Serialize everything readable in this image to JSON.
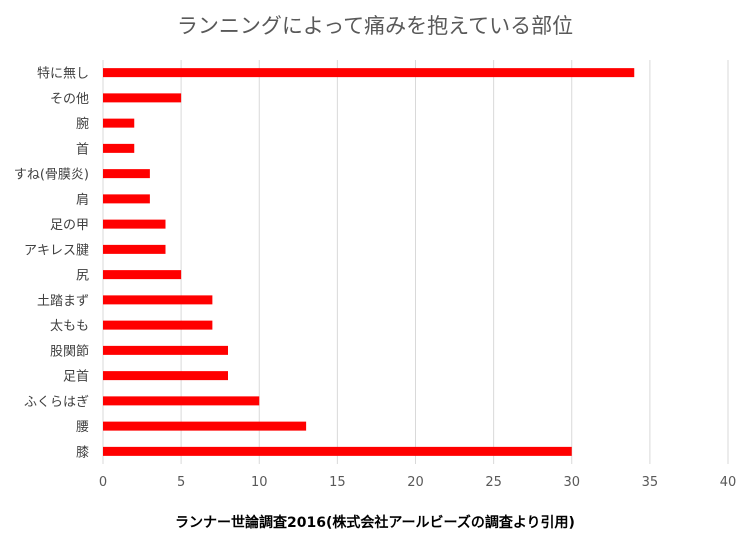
{
  "chart_data": {
    "type": "bar",
    "orientation": "horizontal",
    "title": "ランニングによって痛みを抱えている部位",
    "categories": [
      "特に無し",
      "その他",
      "腕",
      "首",
      "すね(骨膜炎)",
      "肩",
      "足の甲",
      "アキレス腱",
      "尻",
      "土踏まず",
      "太もも",
      "股関節",
      "足首",
      "ふくらはぎ",
      "腰",
      "膝"
    ],
    "values": [
      34,
      5,
      2,
      2,
      3,
      3,
      4,
      4,
      5,
      7,
      7,
      8,
      8,
      10,
      13,
      30
    ],
    "xlim": [
      0,
      40
    ],
    "xticks": [
      0,
      5,
      10,
      15,
      20,
      25,
      30,
      35,
      40
    ],
    "grid": true,
    "bar_color": "#ff0000",
    "grid_color": "#d9d9d9",
    "xlabel": "",
    "ylabel": ""
  },
  "source": "ランナー世論調査2016(株式会社アールビーズの調査より引用)"
}
